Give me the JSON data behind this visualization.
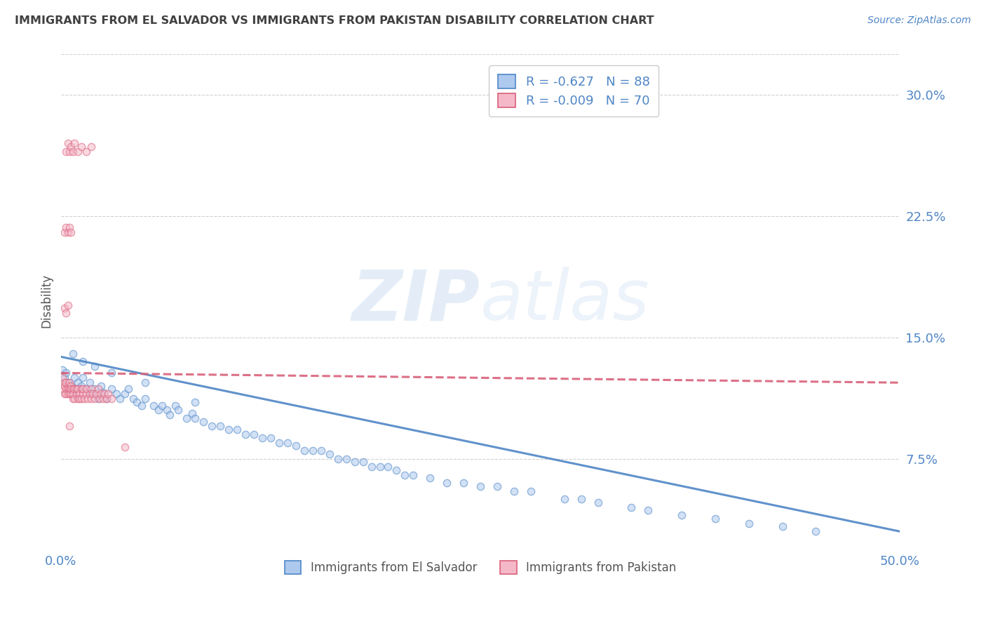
{
  "title": "IMMIGRANTS FROM EL SALVADOR VS IMMIGRANTS FROM PAKISTAN DISABILITY CORRELATION CHART",
  "source": "Source: ZipAtlas.com",
  "ylabel": "Disability",
  "ytick_labels": [
    "7.5%",
    "15.0%",
    "22.5%",
    "30.0%"
  ],
  "ytick_values": [
    0.075,
    0.15,
    0.225,
    0.3
  ],
  "xlim": [
    0.0,
    0.5
  ],
  "ylim": [
    0.02,
    0.325
  ],
  "el_salvador": {
    "name": "Immigrants from El Salvador",
    "face_color": "#adc9ee",
    "edge_color": "#4f86c6",
    "R": -0.627,
    "N": 88,
    "x": [
      0.001,
      0.002,
      0.003,
      0.004,
      0.005,
      0.006,
      0.007,
      0.008,
      0.009,
      0.01,
      0.012,
      0.013,
      0.015,
      0.017,
      0.018,
      0.02,
      0.022,
      0.024,
      0.025,
      0.027,
      0.03,
      0.033,
      0.035,
      0.038,
      0.04,
      0.043,
      0.045,
      0.048,
      0.05,
      0.055,
      0.058,
      0.06,
      0.063,
      0.065,
      0.068,
      0.07,
      0.075,
      0.078,
      0.08,
      0.085,
      0.09,
      0.095,
      0.1,
      0.105,
      0.11,
      0.115,
      0.12,
      0.125,
      0.13,
      0.135,
      0.14,
      0.145,
      0.15,
      0.155,
      0.16,
      0.165,
      0.17,
      0.175,
      0.18,
      0.185,
      0.19,
      0.195,
      0.2,
      0.205,
      0.21,
      0.22,
      0.23,
      0.24,
      0.25,
      0.26,
      0.27,
      0.28,
      0.3,
      0.31,
      0.32,
      0.34,
      0.35,
      0.37,
      0.39,
      0.41,
      0.43,
      0.45,
      0.007,
      0.013,
      0.02,
      0.03,
      0.05,
      0.08
    ],
    "y": [
      0.13,
      0.125,
      0.128,
      0.122,
      0.118,
      0.12,
      0.115,
      0.125,
      0.118,
      0.122,
      0.12,
      0.125,
      0.118,
      0.122,
      0.115,
      0.118,
      0.112,
      0.12,
      0.116,
      0.112,
      0.118,
      0.115,
      0.112,
      0.115,
      0.118,
      0.112,
      0.11,
      0.108,
      0.112,
      0.108,
      0.105,
      0.108,
      0.105,
      0.102,
      0.108,
      0.105,
      0.1,
      0.103,
      0.1,
      0.098,
      0.095,
      0.095,
      0.093,
      0.093,
      0.09,
      0.09,
      0.088,
      0.088,
      0.085,
      0.085,
      0.083,
      0.08,
      0.08,
      0.08,
      0.078,
      0.075,
      0.075,
      0.073,
      0.073,
      0.07,
      0.07,
      0.07,
      0.068,
      0.065,
      0.065,
      0.063,
      0.06,
      0.06,
      0.058,
      0.058,
      0.055,
      0.055,
      0.05,
      0.05,
      0.048,
      0.045,
      0.043,
      0.04,
      0.038,
      0.035,
      0.033,
      0.03,
      0.14,
      0.135,
      0.132,
      0.128,
      0.122,
      0.11
    ],
    "trend_x": [
      0.0,
      0.5
    ],
    "trend_y": [
      0.138,
      0.03
    ]
  },
  "pakistan": {
    "name": "Immigrants from Pakistan",
    "face_color": "#f5b8c8",
    "edge_color": "#d9607a",
    "R": -0.009,
    "N": 70,
    "x": [
      0.001,
      0.001,
      0.002,
      0.002,
      0.002,
      0.003,
      0.003,
      0.003,
      0.004,
      0.004,
      0.004,
      0.005,
      0.005,
      0.005,
      0.006,
      0.006,
      0.006,
      0.007,
      0.007,
      0.007,
      0.008,
      0.008,
      0.009,
      0.009,
      0.01,
      0.01,
      0.011,
      0.011,
      0.012,
      0.012,
      0.013,
      0.013,
      0.014,
      0.015,
      0.015,
      0.016,
      0.017,
      0.018,
      0.018,
      0.019,
      0.02,
      0.021,
      0.022,
      0.023,
      0.024,
      0.025,
      0.026,
      0.027,
      0.028,
      0.03,
      0.003,
      0.004,
      0.005,
      0.006,
      0.007,
      0.008,
      0.01,
      0.012,
      0.015,
      0.018,
      0.002,
      0.003,
      0.004,
      0.005,
      0.006,
      0.002,
      0.003,
      0.004,
      0.005,
      0.038
    ],
    "y": [
      0.125,
      0.118,
      0.122,
      0.115,
      0.12,
      0.118,
      0.122,
      0.115,
      0.12,
      0.118,
      0.115,
      0.118,
      0.122,
      0.115,
      0.12,
      0.115,
      0.118,
      0.112,
      0.118,
      0.115,
      0.118,
      0.112,
      0.115,
      0.118,
      0.112,
      0.118,
      0.115,
      0.112,
      0.118,
      0.112,
      0.115,
      0.118,
      0.112,
      0.115,
      0.118,
      0.112,
      0.115,
      0.112,
      0.118,
      0.115,
      0.112,
      0.115,
      0.118,
      0.112,
      0.115,
      0.112,
      0.115,
      0.112,
      0.115,
      0.112,
      0.265,
      0.27,
      0.265,
      0.268,
      0.265,
      0.27,
      0.265,
      0.268,
      0.265,
      0.268,
      0.215,
      0.218,
      0.215,
      0.218,
      0.215,
      0.168,
      0.165,
      0.17,
      0.095,
      0.082
    ],
    "trend_x": [
      0.0,
      0.5
    ],
    "trend_y": [
      0.128,
      0.122
    ]
  },
  "watermark_zip": "ZIP",
  "watermark_atlas": "atlas",
  "background_color": "#ffffff",
  "grid_color": "#d0d0d0",
  "title_color": "#404040",
  "axis_label_color": "#555555",
  "tick_color": "#4f86c6",
  "scatter_size": 55,
  "scatter_alpha": 0.55,
  "scatter_linewidth": 1.0
}
